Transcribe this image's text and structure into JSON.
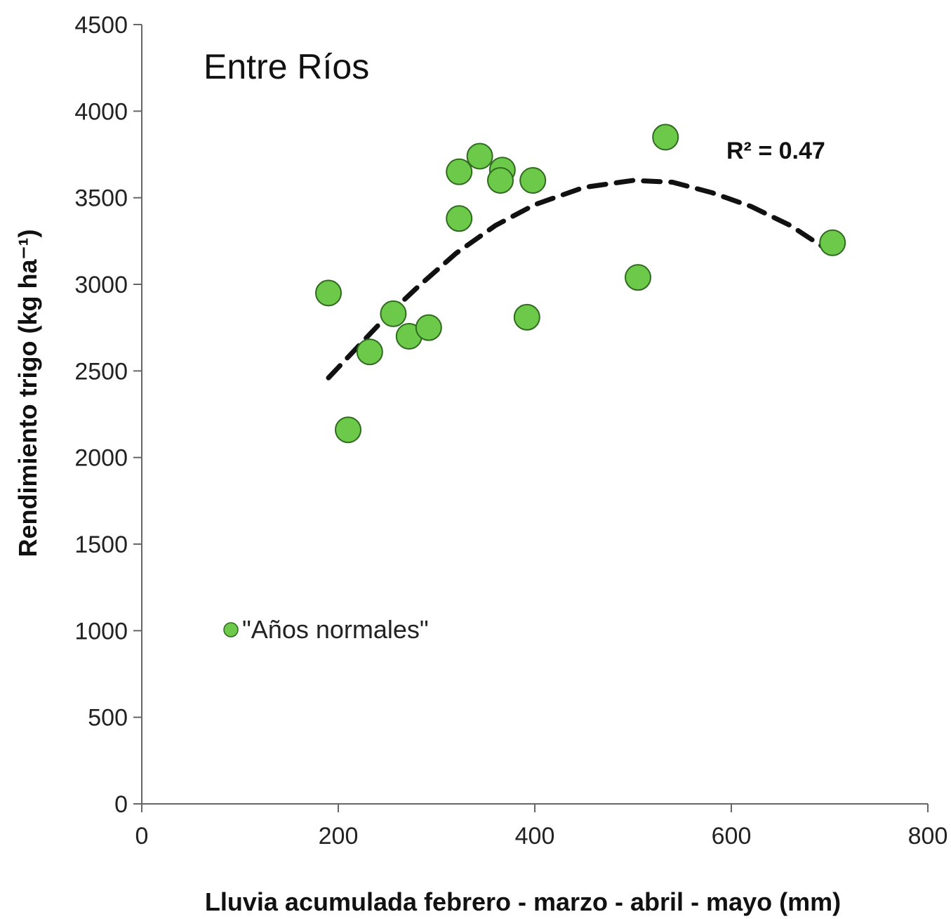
{
  "chart_data": {
    "type": "scatter",
    "title": "Entre Ríos",
    "xlabel": "Lluvia acumulada febrero - marzo - abril - mayo  (mm)",
    "ylabel": "Rendimiento trigo (kg ha⁻¹)",
    "xlim": [
      0,
      800
    ],
    "ylim": [
      0,
      4500
    ],
    "x_ticks": [
      0,
      200,
      400,
      600,
      800
    ],
    "y_ticks": [
      0,
      500,
      1000,
      1500,
      2000,
      2500,
      3000,
      3500,
      4000,
      4500
    ],
    "grid": false,
    "legend_position": "lower-left",
    "annotation": "R² = 0.47",
    "series": [
      {
        "name": "\"Años normales\"",
        "color": "#6cc94a",
        "edge_color": "#2f6b1f",
        "points": [
          {
            "x": 190,
            "y": 2950
          },
          {
            "x": 210,
            "y": 2160
          },
          {
            "x": 232,
            "y": 2610
          },
          {
            "x": 256,
            "y": 2830
          },
          {
            "x": 272,
            "y": 2700
          },
          {
            "x": 292,
            "y": 2750
          },
          {
            "x": 323,
            "y": 3380
          },
          {
            "x": 323,
            "y": 3650
          },
          {
            "x": 344,
            "y": 3740
          },
          {
            "x": 367,
            "y": 3660
          },
          {
            "x": 365,
            "y": 3600
          },
          {
            "x": 398,
            "y": 3600
          },
          {
            "x": 392,
            "y": 2810
          },
          {
            "x": 505,
            "y": 3040
          },
          {
            "x": 533,
            "y": 3850
          },
          {
            "x": 703,
            "y": 3240
          }
        ]
      }
    ],
    "trendline": {
      "type": "polynomial-2",
      "style": "dashed",
      "color": "#111111",
      "x_range": [
        190,
        703
      ],
      "points": [
        {
          "x": 190,
          "y": 2460
        },
        {
          "x": 220,
          "y": 2640
        },
        {
          "x": 250,
          "y": 2820
        },
        {
          "x": 280,
          "y": 2980
        },
        {
          "x": 320,
          "y": 3180
        },
        {
          "x": 360,
          "y": 3340
        },
        {
          "x": 400,
          "y": 3460
        },
        {
          "x": 450,
          "y": 3560
        },
        {
          "x": 500,
          "y": 3600
        },
        {
          "x": 540,
          "y": 3590
        },
        {
          "x": 580,
          "y": 3530
        },
        {
          "x": 620,
          "y": 3450
        },
        {
          "x": 660,
          "y": 3340
        },
        {
          "x": 703,
          "y": 3180
        }
      ]
    }
  }
}
